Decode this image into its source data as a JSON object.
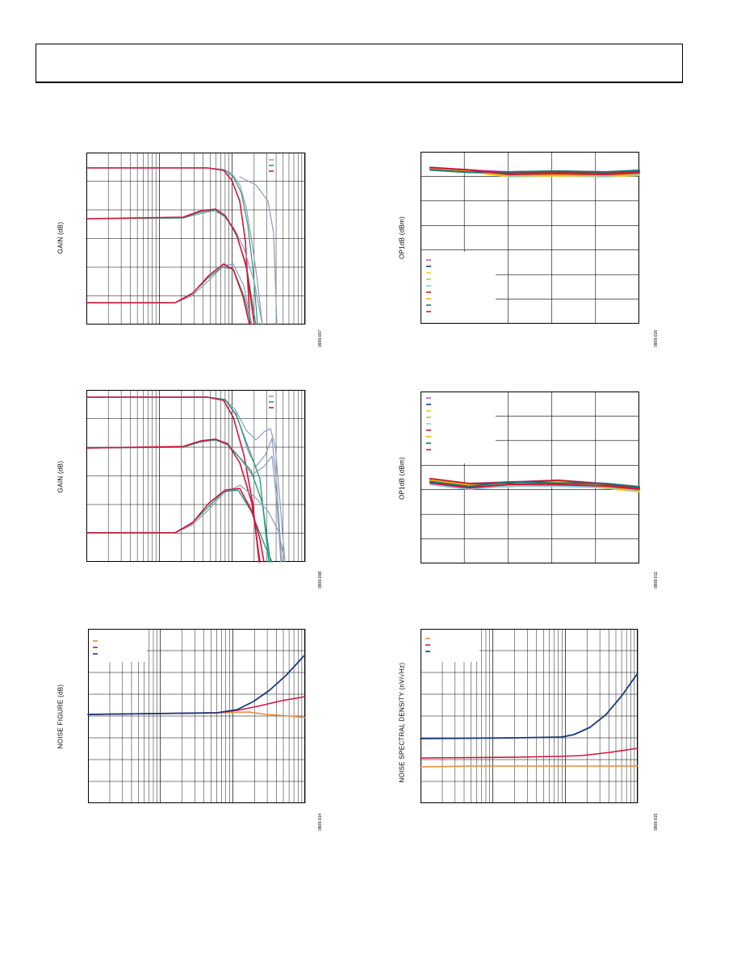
{
  "page": {
    "header_box": true
  },
  "colors": {
    "red": "#d4143c",
    "green": "#2a9a7a",
    "grayblue": "#8a9cb8",
    "navy": "#1a3a78",
    "orange": "#f0883a",
    "purple": "#c060d0",
    "yellow": "#e8d020",
    "lightblue": "#88c8e8",
    "lime": "#a8d048",
    "teal": "#107878",
    "darkred": "#c02020",
    "gold": "#e8b010"
  },
  "figures": [
    {
      "id": "fig-gain-1",
      "ylabel": "GAIN (dB)",
      "fig_id": "0909-007"
    },
    {
      "id": "fig-op1db-1",
      "ylabel": "OP1dB (dBm)",
      "fig_id": "0909-016"
    },
    {
      "id": "fig-gain-2",
      "ylabel": "GAIN (dB)",
      "fig_id": "0909-008"
    },
    {
      "id": "fig-op1db-2",
      "ylabel": "OP1dB (dBm)",
      "fig_id": "0909-011"
    },
    {
      "id": "fig-noise-figure",
      "ylabel": "NOISE FIGURE (dB)",
      "fig_id": "0909-014"
    },
    {
      "id": "fig-noise-density",
      "ylabel": "NOISE SPECTRAL DENSITY (nV/√Hz)",
      "fig_id": "0909-015"
    }
  ]
}
